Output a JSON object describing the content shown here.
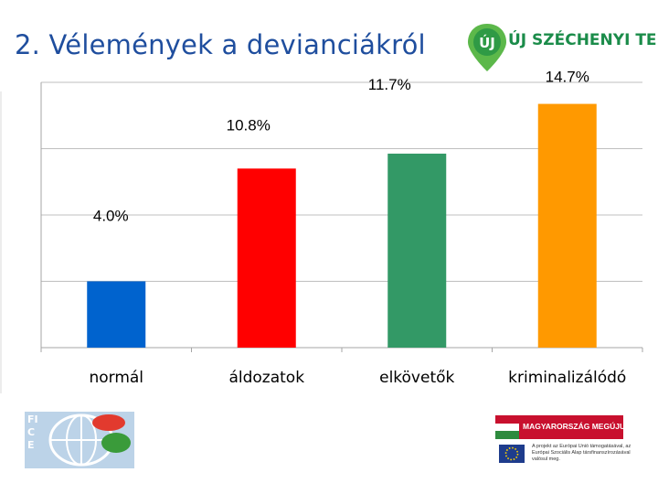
{
  "slide": {
    "title": "2. Vélemények a devianciákról",
    "logo_top": "ÚJ SZÉCHENYI TERV",
    "logo_fice": "FICE",
    "logo_hu": "MAGYARORSZÁG MEGÚJUL",
    "eu_note": "A projekt az Európai Unió támogatásával, az Európai Szociális Alap társfinanszírozásával valósul meg."
  },
  "colors": {
    "title": "#1f4e9e",
    "brand_green": "#1b8c4a",
    "bar_normal": "#0063ce",
    "bar_aldozatok": "#ff0000",
    "bar_elkovetok": "#339966",
    "bar_kriminalizalodo": "#ff9900",
    "grid": "#bfbfbf"
  },
  "chart_data": {
    "type": "bar",
    "categories": [
      "normál",
      "áldozatok",
      "elkövetők",
      "kriminalizálódó"
    ],
    "values": [
      4.0,
      10.8,
      11.7,
      14.7
    ],
    "data_labels": [
      "4.0%",
      "10.8%",
      "11.7%",
      "14.7%"
    ],
    "title": "",
    "xlabel": "",
    "ylabel": "",
    "ylim": [
      0,
      16
    ],
    "grid": true,
    "legend": "none"
  }
}
